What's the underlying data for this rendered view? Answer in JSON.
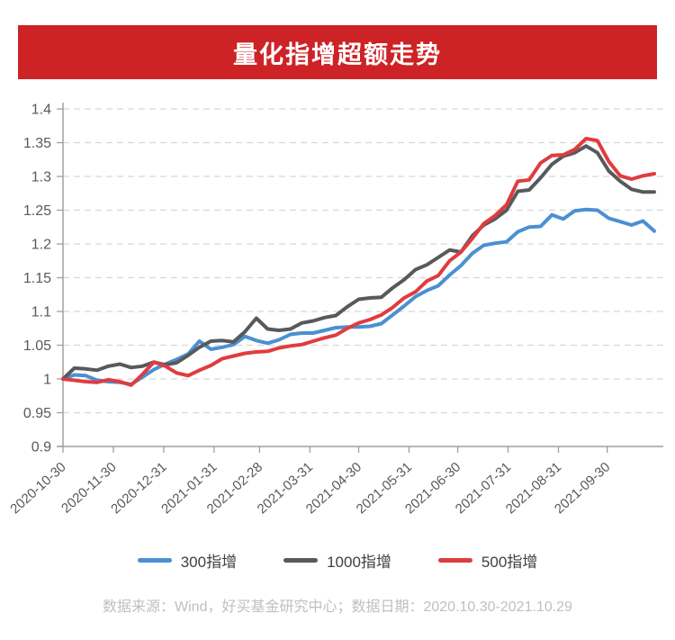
{
  "header": {
    "title": "量化指增超额走势"
  },
  "colors": {
    "banner_red": "#cd2326",
    "axis": "#a0a0a0",
    "grid": "#d6d6d6",
    "tick_label": "#595959",
    "legend_text": "#404040",
    "footer_text": "#bfbfbf",
    "background": "#ffffff"
  },
  "chart_data": {
    "type": "line",
    "title": "量化指增超额走势",
    "xlabel": "",
    "ylabel": "",
    "ylim": [
      0.9,
      1.4
    ],
    "grid": "dashed-horizontal",
    "legend_position": "bottom",
    "y_ticks": [
      "1.4",
      "1.35",
      "1.3",
      "1.25",
      "1.2",
      "1.15",
      "1.1",
      "1.05",
      "1",
      "0.95",
      "0.9"
    ],
    "x_axis_tick_labels": [
      "2020-10-30",
      "2020-11-30",
      "2020-12-31",
      "2021-01-31",
      "2021-02-28",
      "2021-03-31",
      "2021-04-30",
      "2021-05-31",
      "2021-06-30",
      "2021-07-31",
      "2021-08-31",
      "2021-09-30"
    ],
    "x_tick_day_offsets": [
      0,
      31,
      62,
      93,
      121,
      152,
      182,
      213,
      243,
      274,
      305,
      335
    ],
    "total_days": 364,
    "x_categories": [
      "2020-10-30",
      "2020-11-06",
      "2020-11-13",
      "2020-11-20",
      "2020-11-27",
      "2020-12-04",
      "2020-12-11",
      "2020-12-18",
      "2020-12-25",
      "2021-01-01",
      "2021-01-08",
      "2021-01-15",
      "2021-01-22",
      "2021-01-29",
      "2021-02-05",
      "2021-02-12",
      "2021-02-19",
      "2021-02-26",
      "2021-03-05",
      "2021-03-12",
      "2021-03-19",
      "2021-03-26",
      "2021-04-02",
      "2021-04-09",
      "2021-04-16",
      "2021-04-23",
      "2021-04-30",
      "2021-05-07",
      "2021-05-14",
      "2021-05-21",
      "2021-05-28",
      "2021-06-04",
      "2021-06-11",
      "2021-06-18",
      "2021-06-25",
      "2021-07-02",
      "2021-07-09",
      "2021-07-16",
      "2021-07-23",
      "2021-07-30",
      "2021-08-06",
      "2021-08-13",
      "2021-08-20",
      "2021-08-27",
      "2021-09-03",
      "2021-09-10",
      "2021-09-17",
      "2021-09-24",
      "2021-10-01",
      "2021-10-08",
      "2021-10-15",
      "2021-10-22",
      "2021-10-29"
    ],
    "series": [
      {
        "name": "300指增",
        "color": "#4a90d2",
        "values": [
          1.0,
          1.006,
          1.005,
          0.998,
          0.996,
          0.995,
          0.992,
          1.003,
          1.014,
          1.022,
          1.029,
          1.037,
          1.056,
          1.044,
          1.047,
          1.051,
          1.063,
          1.057,
          1.053,
          1.058,
          1.066,
          1.068,
          1.068,
          1.072,
          1.076,
          1.077,
          1.077,
          1.078,
          1.082,
          1.095,
          1.108,
          1.122,
          1.131,
          1.138,
          1.154,
          1.168,
          1.186,
          1.198,
          1.201,
          1.203,
          1.218,
          1.225,
          1.226,
          1.243,
          1.237,
          1.249,
          1.251,
          1.25,
          1.238,
          1.233,
          1.228,
          1.234,
          1.219
        ]
      },
      {
        "name": "1000指增",
        "color": "#58595b",
        "values": [
          1.0,
          1.016,
          1.015,
          1.013,
          1.019,
          1.022,
          1.017,
          1.019,
          1.025,
          1.021,
          1.024,
          1.035,
          1.047,
          1.056,
          1.057,
          1.055,
          1.07,
          1.09,
          1.074,
          1.072,
          1.074,
          1.083,
          1.086,
          1.091,
          1.094,
          1.107,
          1.118,
          1.12,
          1.121,
          1.135,
          1.147,
          1.162,
          1.169,
          1.18,
          1.191,
          1.188,
          1.212,
          1.228,
          1.237,
          1.25,
          1.278,
          1.28,
          1.298,
          1.318,
          1.33,
          1.335,
          1.345,
          1.335,
          1.308,
          1.293,
          1.281,
          1.277,
          1.277
        ]
      },
      {
        "name": "500指增",
        "color": "#e03c3e",
        "values": [
          1.0,
          0.998,
          0.996,
          0.995,
          0.999,
          0.996,
          0.991,
          1.007,
          1.025,
          1.019,
          1.009,
          1.005,
          1.013,
          1.02,
          1.03,
          1.034,
          1.038,
          1.04,
          1.041,
          1.046,
          1.049,
          1.051,
          1.056,
          1.061,
          1.065,
          1.075,
          1.083,
          1.088,
          1.095,
          1.106,
          1.12,
          1.129,
          1.145,
          1.153,
          1.175,
          1.188,
          1.208,
          1.23,
          1.242,
          1.258,
          1.293,
          1.295,
          1.32,
          1.331,
          1.332,
          1.34,
          1.356,
          1.353,
          1.322,
          1.301,
          1.296,
          1.301,
          1.304
        ]
      }
    ]
  },
  "footer": {
    "source_note": "数据来源：Wind，好买基金研究中心；数据日期：2020.10.30-2021.10.29"
  }
}
